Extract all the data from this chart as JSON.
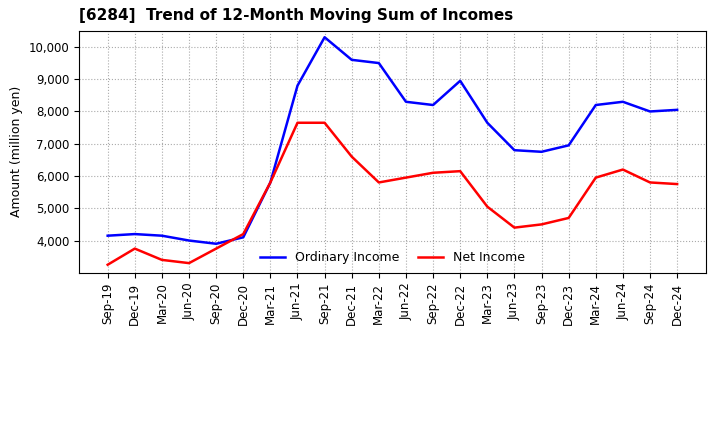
{
  "title": "[6284]  Trend of 12-Month Moving Sum of Incomes",
  "ylabel": "Amount (million yen)",
  "ylim": [
    3000,
    10500
  ],
  "yticks": [
    4000,
    5000,
    6000,
    7000,
    8000,
    9000,
    10000
  ],
  "x_labels": [
    "Sep-19",
    "Dec-19",
    "Mar-20",
    "Jun-20",
    "Sep-20",
    "Dec-20",
    "Mar-21",
    "Jun-21",
    "Sep-21",
    "Dec-21",
    "Mar-22",
    "Jun-22",
    "Sep-22",
    "Dec-22",
    "Mar-23",
    "Jun-23",
    "Sep-23",
    "Dec-23",
    "Mar-24",
    "Jun-24",
    "Sep-24",
    "Dec-24"
  ],
  "ordinary_income": [
    4150,
    4200,
    4150,
    4000,
    3900,
    4100,
    5800,
    8800,
    10300,
    9600,
    9500,
    8300,
    8200,
    8950,
    7650,
    6800,
    6750,
    6950,
    8200,
    8300,
    8000,
    8050
  ],
  "net_income": [
    3250,
    3750,
    3400,
    3300,
    3750,
    4200,
    5800,
    7650,
    7650,
    6600,
    5800,
    5950,
    6100,
    6150,
    5050,
    4400,
    4500,
    4700,
    5950,
    6200,
    5800,
    5750
  ],
  "ordinary_color": "#0000ff",
  "net_color": "#ff0000",
  "line_width": 1.8,
  "legend_labels": [
    "Ordinary Income",
    "Net Income"
  ],
  "title_fontsize": 11,
  "ylabel_fontsize": 9,
  "tick_fontsize": 8.5
}
